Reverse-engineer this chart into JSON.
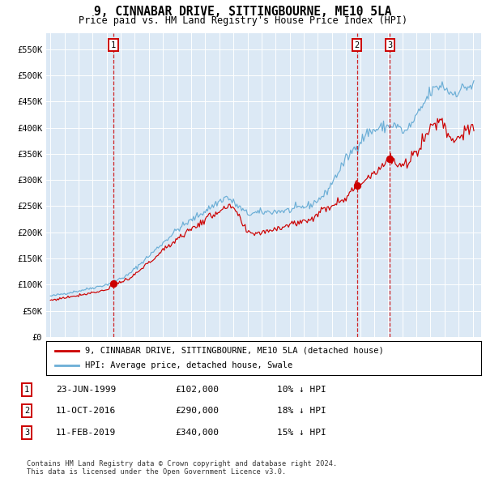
{
  "title": "9, CINNABAR DRIVE, SITTINGBOURNE, ME10 5LA",
  "subtitle": "Price paid vs. HM Land Registry's House Price Index (HPI)",
  "line_color_hpi": "#6baed6",
  "line_color_price": "#cc0000",
  "plot_bg_color": "#dce9f5",
  "ylim": [
    0,
    580000
  ],
  "ytick_labels": [
    "£0",
    "£50K",
    "£100K",
    "£150K",
    "£200K",
    "£250K",
    "£300K",
    "£350K",
    "£400K",
    "£450K",
    "£500K",
    "£550K"
  ],
  "ytick_values": [
    0,
    50000,
    100000,
    150000,
    200000,
    250000,
    300000,
    350000,
    400000,
    450000,
    500000,
    550000
  ],
  "xlim_start": 1994.7,
  "xlim_end": 2025.6,
  "transactions": [
    {
      "label": "1",
      "price": 102000,
      "x_year": 1999.47
    },
    {
      "label": "2",
      "price": 290000,
      "x_year": 2016.78
    },
    {
      "label": "3",
      "price": 340000,
      "x_year": 2019.12
    }
  ],
  "legend_line1": "9, CINNABAR DRIVE, SITTINGBOURNE, ME10 5LA (detached house)",
  "legend_line2": "HPI: Average price, detached house, Swale",
  "footnote": "Contains HM Land Registry data © Crown copyright and database right 2024.\nThis data is licensed under the Open Government Licence v3.0.",
  "table_rows": [
    {
      "num": "1",
      "date": "23-JUN-1999",
      "price": "£102,000",
      "hpi": "10% ↓ HPI"
    },
    {
      "num": "2",
      "date": "11-OCT-2016",
      "price": "£290,000",
      "hpi": "18% ↓ HPI"
    },
    {
      "num": "3",
      "date": "11-FEB-2019",
      "price": "£340,000",
      "hpi": "15% ↓ HPI"
    }
  ]
}
